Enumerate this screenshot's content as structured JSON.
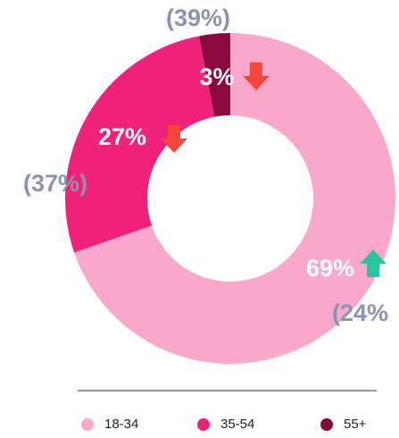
{
  "chart_data": {
    "type": "donut",
    "categories": [
      "18-34",
      "35-54",
      "55+"
    ],
    "values": [
      69,
      27,
      3
    ],
    "value_labels": [
      "69%",
      "27%",
      "3%"
    ],
    "comparisons": [
      "(24%",
      "(37%)",
      "(39%)"
    ],
    "trend": [
      "up",
      "down",
      "down"
    ],
    "colors": [
      "#f9a8cc",
      "#f0217a",
      "#8b0a3e"
    ]
  }
}
